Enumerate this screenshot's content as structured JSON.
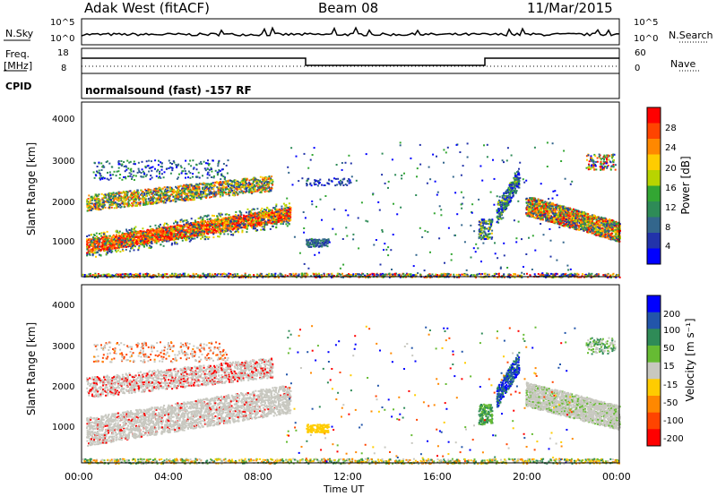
{
  "header": {
    "station": "Adak West (fitACF)",
    "beam": "Beam 08",
    "date": "11/Mar/2015"
  },
  "panels": {
    "nsky_label": "N.Sky",
    "nsearch_label": "N.Search",
    "freq_label_top": "Freq.",
    "freq_label_bottom": "[MHz]",
    "nave_label": "Nave",
    "cpid_label": "CPID",
    "cpid_text": "normalsound (fast) -157 RF",
    "nsky_ticks": [
      "10^5",
      "10^0"
    ],
    "nsearch_ticks": [
      "10^5",
      "10^0"
    ],
    "freq_ticks": [
      "18",
      "8"
    ],
    "nave_ticks": [
      "60",
      "0"
    ]
  },
  "chart_data": [
    {
      "type": "heatmap",
      "name": "power",
      "ylabel": "Slant Range [km]",
      "yticks": [
        "4000",
        "3000",
        "2000",
        "1000"
      ],
      "ylim": [
        180,
        4600
      ],
      "colorbar": {
        "label": "Power [dB]",
        "ticks": [
          "28",
          "24",
          "20",
          "16",
          "12",
          "8",
          "4"
        ],
        "colors": [
          "#ff0000",
          "#ff4400",
          "#ff8800",
          "#ffcc00",
          "#b8d400",
          "#33a633",
          "#2e8b57",
          "#33668c",
          "#2233aa",
          "#0000ff"
        ]
      }
    },
    {
      "type": "heatmap",
      "name": "velocity",
      "ylabel": "Slant Range [km]",
      "yticks": [
        "4000",
        "3000",
        "2000",
        "1000"
      ],
      "ylim": [
        180,
        4600
      ],
      "colorbar": {
        "label": "Velocity [m s⁻¹]",
        "ticks": [
          "200",
          "100",
          "50",
          "15",
          "-15",
          "-50",
          "-100",
          "-200"
        ],
        "colors": [
          "#0000ff",
          "#2255aa",
          "#2f8b57",
          "#66bb33",
          "#c8c8c0",
          "#ffcc00",
          "#ff8800",
          "#ff4400",
          "#ff0000"
        ]
      }
    }
  ],
  "xaxis": {
    "label": "Time UT",
    "ticks": [
      "00:00",
      "04:00",
      "08:00",
      "12:00",
      "16:00",
      "20:00",
      "00:00"
    ]
  }
}
